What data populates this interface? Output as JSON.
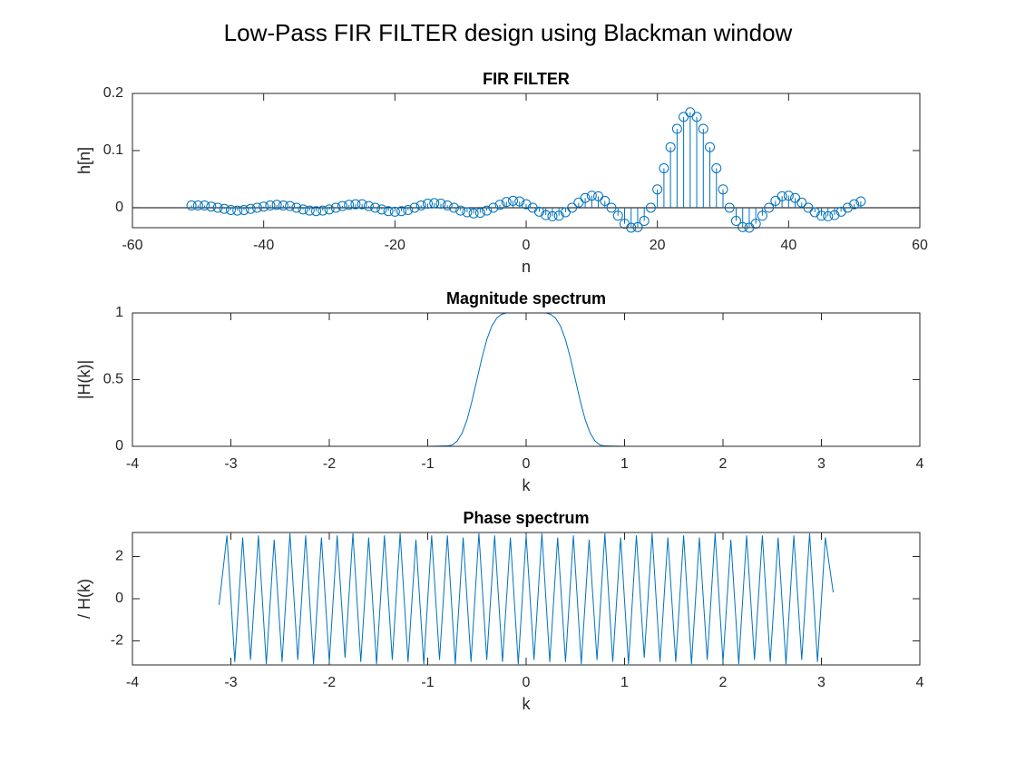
{
  "title": "Low-Pass FIR FILTER design using Blackman window",
  "chart_data": [
    {
      "type": "stem",
      "title": "FIR FILTER",
      "xlabel": "n",
      "ylabel": "h[n]",
      "color": "#0072bd",
      "x": [
        -51,
        -50,
        -49,
        -48,
        -47,
        -46,
        -45,
        -44,
        -43,
        -42,
        -41,
        -40,
        -39,
        -38,
        -37,
        -36,
        -35,
        -34,
        -33,
        -32,
        -31,
        -30,
        -29,
        -28,
        -27,
        -26,
        -25,
        -24,
        -23,
        -22,
        -21,
        -20,
        -19,
        -18,
        -17,
        -16,
        -15,
        -14,
        -13,
        -12,
        -11,
        -10,
        -9,
        -8,
        -7,
        -6,
        -5,
        -4,
        -3,
        -2,
        -1,
        0,
        1,
        2,
        3,
        4,
        5,
        6,
        7,
        8,
        9,
        10,
        11,
        12,
        13,
        14,
        15,
        16,
        17,
        18,
        19,
        20,
        21,
        22,
        23,
        24,
        25,
        26,
        27,
        28,
        29,
        30,
        31,
        32,
        33,
        34,
        35,
        36,
        37,
        38,
        39,
        40,
        41,
        42,
        43,
        44,
        45,
        46,
        47,
        48,
        49,
        50,
        51
      ],
      "values": [
        0.004,
        0.004,
        0.004,
        0.002,
        0,
        -0.002,
        -0.004,
        -0.005,
        -0.004,
        -0.002,
        0,
        0.002,
        0.004,
        0.005,
        0.004,
        0.003,
        0,
        -0.003,
        -0.005,
        -0.006,
        -0.005,
        -0.003,
        0,
        0.003,
        0.005,
        0.006,
        0.006,
        0.003,
        0,
        -0.003,
        -0.006,
        -0.007,
        -0.006,
        -0.004,
        0,
        0.004,
        0.007,
        0.008,
        0.007,
        0.004,
        0,
        -0.005,
        -0.008,
        -0.01,
        -0.009,
        -0.005,
        0,
        0.005,
        0.01,
        0.012,
        0.011,
        0.006,
        0,
        -0.007,
        -0.013,
        -0.015,
        -0.014,
        -0.008,
        0,
        0.009,
        0.017,
        0.021,
        0.02,
        0.012,
        0,
        -0.014,
        -0.028,
        -0.035,
        -0.034,
        -0.023,
        0,
        0.032,
        0.069,
        0.106,
        0.138,
        0.159,
        0.167,
        0.159,
        0.138,
        0.106,
        0.069,
        0.032,
        0,
        -0.023,
        -0.034,
        -0.035,
        -0.028,
        -0.014,
        0,
        0.012,
        0.02,
        0.021,
        0.017,
        0.009,
        0,
        -0.008,
        -0.014,
        -0.015,
        -0.013,
        -0.007,
        0,
        0.006,
        0.011
      ],
      "xlim": [
        -60,
        60
      ],
      "ylim": [
        -0.035,
        0.2
      ],
      "xticks": [
        -60,
        -40,
        -20,
        0,
        20,
        40,
        60
      ],
      "yticks": [
        0,
        0.1,
        0.2
      ]
    },
    {
      "type": "line",
      "title": "Magnitude spectrum",
      "xlabel": "k",
      "ylabel": "|H(k)|",
      "color": "#0072bd",
      "x": [
        -3.14,
        -1,
        -0.8,
        -0.75,
        -0.7,
        -0.65,
        -0.6,
        -0.55,
        -0.5,
        -0.45,
        -0.4,
        -0.35,
        -0.3,
        -0.25,
        -0.2,
        0,
        0.2,
        0.25,
        0.3,
        0.35,
        0.4,
        0.45,
        0.5,
        0.55,
        0.6,
        0.65,
        0.7,
        0.75,
        0.8,
        1,
        3.14
      ],
      "values": [
        0,
        0,
        0.003,
        0.01,
        0.04,
        0.1,
        0.2,
        0.34,
        0.5,
        0.66,
        0.8,
        0.9,
        0.96,
        0.99,
        1,
        1,
        1,
        0.99,
        0.96,
        0.9,
        0.8,
        0.66,
        0.5,
        0.34,
        0.2,
        0.1,
        0.04,
        0.01,
        0.003,
        0,
        0
      ],
      "xlim": [
        -4,
        4
      ],
      "ylim": [
        0,
        1
      ],
      "xticks": [
        -4,
        -3,
        -2,
        -1,
        0,
        1,
        2,
        3,
        4
      ],
      "yticks": [
        0,
        0.5,
        1
      ]
    },
    {
      "type": "line",
      "title": "Phase spectrum",
      "xlabel": "k",
      "ylabel": "/ H(k)",
      "color": "#0072bd",
      "x": [
        -3.12,
        -3.04,
        -2.96,
        -2.88,
        -2.8,
        -2.72,
        -2.64,
        -2.56,
        -2.48,
        -2.4,
        -2.32,
        -2.24,
        -2.16,
        -2.08,
        -2,
        -1.92,
        -1.84,
        -1.76,
        -1.68,
        -1.6,
        -1.52,
        -1.44,
        -1.36,
        -1.28,
        -1.2,
        -1.12,
        -1.04,
        -0.96,
        -0.88,
        -0.8,
        -0.72,
        -0.64,
        -0.56,
        -0.48,
        -0.4,
        -0.32,
        -0.24,
        -0.16,
        -0.08,
        0,
        0.08,
        0.16,
        0.24,
        0.32,
        0.4,
        0.48,
        0.56,
        0.64,
        0.72,
        0.8,
        0.88,
        0.96,
        1.04,
        1.12,
        1.2,
        1.28,
        1.36,
        1.44,
        1.52,
        1.6,
        1.68,
        1.76,
        1.84,
        1.92,
        2,
        2.08,
        2.16,
        2.24,
        2.32,
        2.4,
        2.48,
        2.56,
        2.64,
        2.72,
        2.8,
        2.88,
        2.96,
        3.04,
        3.12
      ],
      "values": [
        -0.3,
        3.0,
        -3.0,
        2.9,
        -2.9,
        3.0,
        -3.1,
        2.8,
        -3.0,
        3.1,
        -2.9,
        3.0,
        -3.1,
        2.9,
        -3.0,
        3.0,
        -2.8,
        3.1,
        -3.0,
        2.9,
        -3.1,
        3.0,
        -2.9,
        3.1,
        -3.0,
        2.8,
        -3.1,
        3.0,
        -2.9,
        3.0,
        -3.1,
        2.9,
        -3.0,
        3.1,
        -2.9,
        3.0,
        -3.0,
        2.9,
        -3.1,
        3.0,
        -2.9,
        3.1,
        -3.0,
        2.9,
        -3.0,
        3.0,
        -3.1,
        2.8,
        -2.9,
        3.1,
        -3.0,
        2.9,
        -3.1,
        3.0,
        -2.8,
        3.1,
        -3.0,
        2.9,
        -3.0,
        3.0,
        -3.1,
        2.9,
        -2.9,
        3.1,
        -3.0,
        2.8,
        -3.1,
        3.0,
        -2.9,
        3.0,
        -3.0,
        2.9,
        -3.1,
        3.0,
        -2.9,
        3.1,
        -3.0,
        2.9,
        0.3
      ],
      "xlim": [
        -4,
        4
      ],
      "ylim": [
        -3.14,
        3.14
      ],
      "xticks": [
        -4,
        -3,
        -2,
        -1,
        0,
        1,
        2,
        3,
        4
      ],
      "yticks": [
        -2,
        0,
        2
      ]
    }
  ]
}
